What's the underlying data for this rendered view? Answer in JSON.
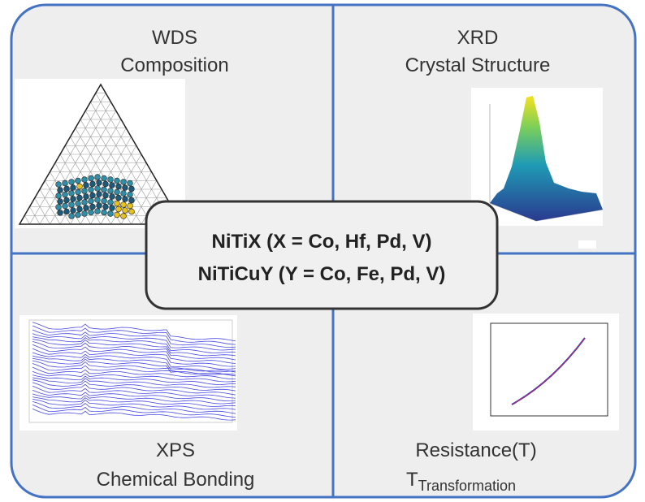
{
  "panels": [
    {
      "title": "WDS",
      "subtitle": "Composition"
    },
    {
      "title": "XRD",
      "subtitle": "Crystal Structure"
    },
    {
      "title": "XPS",
      "subtitle": "Chemical Bonding"
    },
    {
      "title": "Resistance(T)",
      "subtitle": "T",
      "subtitle_sub": "Transformation"
    }
  ],
  "center": {
    "lines": [
      "NiTiX (X = Co, Hf, Pd, V)",
      "NiTiCuY (Y = Co, Fe, Pd, V)"
    ]
  }
}
